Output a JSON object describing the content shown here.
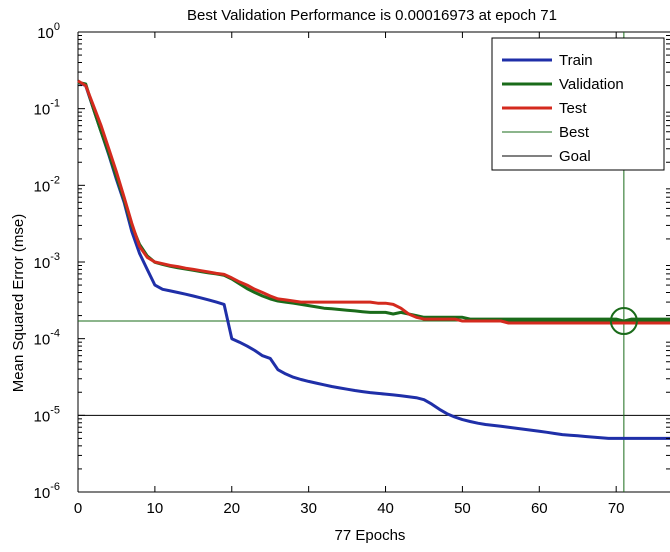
{
  "chart_data": {
    "type": "line",
    "title": "Best Validation Performance is 0.00016973 at epoch 71",
    "xlabel": "77 Epochs",
    "ylabel": "Mean Squared Error  (mse)",
    "xlim": [
      0,
      77
    ],
    "ylim": [
      1e-06,
      1
    ],
    "yscale": "log",
    "xticks": [
      "0",
      "10",
      "20",
      "30",
      "40",
      "50",
      "60",
      "70"
    ],
    "yticks": [
      {
        "base": "10",
        "exp": "0"
      },
      {
        "base": "10",
        "exp": "-1"
      },
      {
        "base": "10",
        "exp": "-2"
      },
      {
        "base": "10",
        "exp": "-3"
      },
      {
        "base": "10",
        "exp": "-4"
      },
      {
        "base": "10",
        "exp": "-5"
      },
      {
        "base": "10",
        "exp": "-6"
      }
    ],
    "legend_position": "top-right",
    "series": [
      {
        "name": "Train",
        "color": "#1f2fa8",
        "width": 3,
        "x": [
          0,
          1,
          2,
          3,
          4,
          5,
          6,
          7,
          8,
          9,
          10,
          11,
          12,
          13,
          14,
          15,
          16,
          17,
          18,
          19,
          20,
          21,
          22,
          23,
          24,
          25,
          26,
          27,
          28,
          29,
          30,
          31,
          32,
          33,
          34,
          35,
          36,
          37,
          38,
          39,
          40,
          41,
          42,
          43,
          44,
          45,
          46,
          47,
          48,
          49,
          50,
          51,
          52,
          53,
          54,
          55,
          56,
          57,
          58,
          59,
          60,
          61,
          62,
          63,
          64,
          65,
          66,
          67,
          68,
          69,
          70,
          71,
          72,
          73,
          74,
          75,
          76,
          77
        ],
        "y": [
          0.22,
          0.2,
          0.1,
          0.05,
          0.025,
          0.012,
          0.006,
          0.0025,
          0.0013,
          0.0008,
          0.0005,
          0.00044,
          0.00042,
          0.0004,
          0.00038,
          0.00036,
          0.00034,
          0.00032,
          0.0003,
          0.00028,
          0.0001,
          9e-05,
          8e-05,
          7e-05,
          6e-05,
          5.53e-05,
          3.94e-05,
          3.47e-05,
          3.14e-05,
          2.93e-05,
          2.77e-05,
          2.63e-05,
          2.5e-05,
          2.38e-05,
          2.28e-05,
          2.19e-05,
          2.11e-05,
          2.04e-05,
          1.98e-05,
          1.93e-05,
          1.89e-05,
          1.85e-05,
          1.8e-05,
          1.75e-05,
          1.7e-05,
          1.6e-05,
          1.4e-05,
          1.2e-05,
          1.05e-05,
          9.5e-06,
          8.8e-06,
          8.3e-06,
          7.9e-06,
          7.6e-06,
          7.4e-06,
          7.2e-06,
          7e-06,
          6.8e-06,
          6.6e-06,
          6.4e-06,
          6.2e-06,
          6e-06,
          5.8e-06,
          5.6e-06,
          5.5e-06,
          5.4e-06,
          5.3e-06,
          5.2e-06,
          5.1e-06,
          5e-06,
          5e-06,
          5e-06,
          5e-06,
          5e-06,
          5e-06,
          5e-06,
          5e-06,
          5e-06
        ]
      },
      {
        "name": "Validation",
        "color": "#1a6b1a",
        "width": 3,
        "x": [
          0,
          1,
          2,
          3,
          4,
          5,
          6,
          7,
          8,
          9,
          10,
          11,
          12,
          13,
          14,
          15,
          16,
          17,
          18,
          19,
          20,
          21,
          22,
          23,
          24,
          25,
          26,
          27,
          28,
          29,
          30,
          31,
          32,
          33,
          34,
          35,
          36,
          37,
          38,
          39,
          40,
          41,
          42,
          43,
          44,
          45,
          46,
          47,
          48,
          49,
          50,
          51,
          52,
          53,
          54,
          55,
          56,
          57,
          58,
          59,
          60,
          61,
          62,
          63,
          64,
          65,
          66,
          67,
          68,
          69,
          70,
          71,
          72,
          73,
          74,
          75,
          76,
          77
        ],
        "y": [
          0.22,
          0.21,
          0.1,
          0.05,
          0.026,
          0.013,
          0.0065,
          0.003,
          0.0017,
          0.0012,
          0.00099,
          0.00093,
          0.00088,
          0.00084,
          0.00081,
          0.00078,
          0.00075,
          0.00072,
          0.0007,
          0.00067,
          0.0006,
          0.00052,
          0.00045,
          0.0004,
          0.00036,
          0.00033,
          0.00031,
          0.0003,
          0.00029,
          0.00028,
          0.00027,
          0.00026,
          0.00025,
          0.000245,
          0.00024,
          0.000235,
          0.00023,
          0.000225,
          0.00022,
          0.00022,
          0.00022,
          0.00021,
          0.00022,
          0.00021,
          0.0002,
          0.00019,
          0.00019,
          0.00019,
          0.00019,
          0.00019,
          0.00019,
          0.00018,
          0.00018,
          0.00018,
          0.00018,
          0.00018,
          0.00018,
          0.00018,
          0.00018,
          0.00018,
          0.00018,
          0.00018,
          0.00018,
          0.00018,
          0.00018,
          0.00018,
          0.00018,
          0.00018,
          0.00018,
          0.00018,
          0.00018,
          0.00016973,
          0.00018,
          0.00018,
          0.00018,
          0.00018,
          0.00018,
          0.00018
        ]
      },
      {
        "name": "Test",
        "color": "#d42a1e",
        "width": 3,
        "x": [
          0,
          1,
          2,
          3,
          4,
          5,
          6,
          7,
          8,
          9,
          10,
          11,
          12,
          13,
          14,
          15,
          16,
          17,
          18,
          19,
          20,
          21,
          22,
          23,
          24,
          25,
          26,
          27,
          28,
          29,
          30,
          31,
          32,
          33,
          34,
          35,
          36,
          37,
          38,
          39,
          40,
          41,
          42,
          43,
          44,
          45,
          46,
          47,
          48,
          49,
          50,
          51,
          52,
          53,
          54,
          55,
          56,
          57,
          58,
          59,
          60,
          61,
          62,
          63,
          64,
          65,
          66,
          67,
          68,
          69,
          70,
          71,
          72,
          73,
          74,
          75,
          76,
          77
        ],
        "y": [
          0.23,
          0.2,
          0.11,
          0.06,
          0.03,
          0.015,
          0.007,
          0.0032,
          0.0016,
          0.00115,
          0.001,
          0.00095,
          0.0009,
          0.00087,
          0.00083,
          0.0008,
          0.00077,
          0.00074,
          0.00071,
          0.00069,
          0.00062,
          0.00055,
          0.0005,
          0.00044,
          0.0004,
          0.00036,
          0.00033,
          0.00032,
          0.00031,
          0.0003,
          0.0003,
          0.0003,
          0.0003,
          0.0003,
          0.0003,
          0.0003,
          0.0003,
          0.0003,
          0.0003,
          0.00029,
          0.00029,
          0.00028,
          0.00025,
          0.00021,
          0.00019,
          0.00018,
          0.00018,
          0.00018,
          0.00018,
          0.00018,
          0.00017,
          0.00017,
          0.00017,
          0.00017,
          0.00017,
          0.00017,
          0.00016,
          0.00016,
          0.00016,
          0.00016,
          0.00016,
          0.00016,
          0.00016,
          0.00016,
          0.00016,
          0.00016,
          0.00016,
          0.00016,
          0.00016,
          0.00016,
          0.00016,
          0.00016,
          0.00016,
          0.00016,
          0.00016,
          0.00016,
          0.00016,
          0.00016
        ]
      }
    ],
    "best": {
      "label": "Best",
      "epoch": 71,
      "value": 0.00016973,
      "color": "#1a6b1a"
    },
    "goal": {
      "label": "Goal",
      "value": 1e-05,
      "color": "#000000"
    }
  }
}
